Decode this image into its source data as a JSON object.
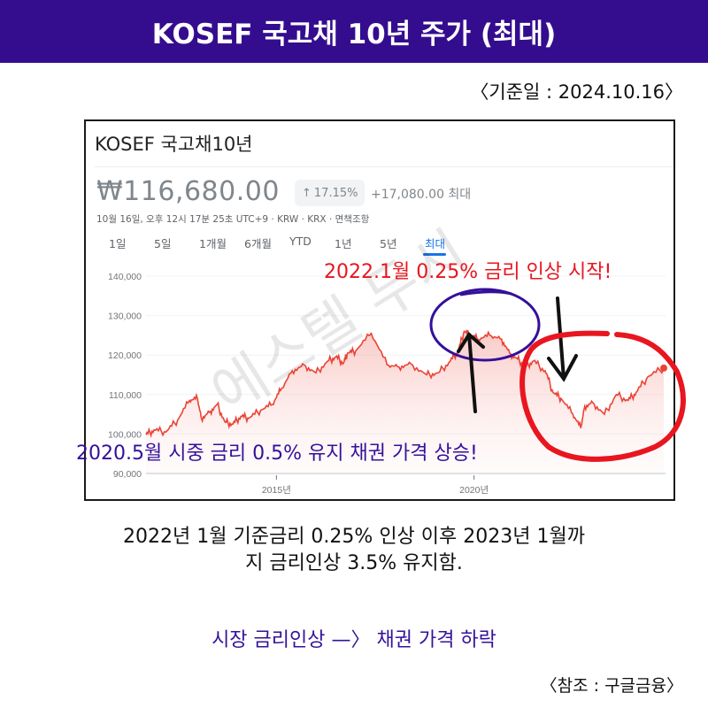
{
  "banner": {
    "title": "KOSEF 국고채 10년 주가 (최대)"
  },
  "date_ref": "〈기준일 : 2024.10.16〉",
  "card": {
    "title": "KOSEF 국고채10년",
    "price": "₩116,680.00",
    "pct_change": "17.15%",
    "pct_arrow": "↑",
    "abs_change": "+17,080.00 최대",
    "meta": "10월 16일, 오후 12시 17분 25초 UTC+9 · KRW · KRX · 면책조항",
    "tabs": [
      {
        "label": "1일",
        "active": false
      },
      {
        "label": "5일",
        "active": false
      },
      {
        "label": "1개월",
        "active": false
      },
      {
        "label": "6개월",
        "active": false
      },
      {
        "label": "YTD",
        "active": false
      },
      {
        "label": "1년",
        "active": false
      },
      {
        "label": "5년",
        "active": false
      },
      {
        "label": "최대",
        "active": true
      }
    ],
    "watermark": "에스텔 두시"
  },
  "annotations": {
    "rate_hike": "2022.1월 0.25% 금리 인상 시작!",
    "bond_rise": "2020.5월 시중 금리 0.5% 유지 채권 가격 상승!",
    "colors": {
      "red": "#e8161f",
      "purple": "#34109a",
      "arrow": "#111111"
    }
  },
  "summary": {
    "line1": "2022년 1월 기준금리 0.25% 인상 이후 2023년 1월까",
    "line2": "지 금리인상 3.5% 유지함."
  },
  "conclusion": "시장 금리인상 —〉 채권 가격 하락",
  "source": "〈참조 : 구글금융〉",
  "colors": {
    "banner": "#340d8f",
    "line": "#ea4335",
    "fill": "#fbd7d3",
    "tab_active": "#1a73e8"
  },
  "chart_data": {
    "type": "area",
    "title": "KOSEF 국고채10년",
    "xlabel": "",
    "ylabel": "",
    "ylim": [
      90000,
      140000
    ],
    "yticks": [
      140000,
      130000,
      120000,
      110000,
      100000,
      90000
    ],
    "ytick_labels": [
      "140,000",
      "130,000",
      "120,000",
      "110,000",
      "100,000",
      "90,000"
    ],
    "xticks": [
      2015,
      2020
    ],
    "xtick_labels": [
      "2015년",
      "2020년"
    ],
    "xlim": [
      2011.7,
      2024.8
    ],
    "grid": true,
    "legend": "none",
    "x": [
      2011.7,
      2011.9,
      2012.2,
      2012.5,
      2012.8,
      2013.0,
      2013.1,
      2013.3,
      2013.5,
      2013.7,
      2013.9,
      2014.1,
      2014.3,
      2014.6,
      2014.9,
      2015.1,
      2015.4,
      2015.7,
      2016.0,
      2016.3,
      2016.5,
      2016.7,
      2016.8,
      2017.0,
      2017.4,
      2017.8,
      2018.1,
      2018.4,
      2018.8,
      2019.1,
      2019.4,
      2019.6,
      2019.75,
      2019.9,
      2020.1,
      2020.4,
      2020.7,
      2020.9,
      2021.1,
      2021.3,
      2021.5,
      2021.8,
      2022.0,
      2022.2,
      2022.5,
      2022.7,
      2022.8,
      2023.0,
      2023.3,
      2023.6,
      2023.9,
      2024.1,
      2024.4,
      2024.8
    ],
    "values": [
      99800,
      101000,
      100500,
      103500,
      108500,
      109000,
      104000,
      105500,
      107500,
      103000,
      102500,
      104500,
      104000,
      106000,
      107500,
      111000,
      116000,
      117500,
      115500,
      118500,
      119500,
      118000,
      120500,
      121000,
      125500,
      117500,
      117000,
      117800,
      115000,
      115500,
      118500,
      121000,
      126000,
      125000,
      124000,
      125000,
      124000,
      120500,
      119000,
      117000,
      118500,
      116000,
      110500,
      109000,
      105000,
      101500,
      107000,
      108000,
      105000,
      110000,
      108500,
      110500,
      114500,
      116700
    ],
    "last_value": 116680
  }
}
